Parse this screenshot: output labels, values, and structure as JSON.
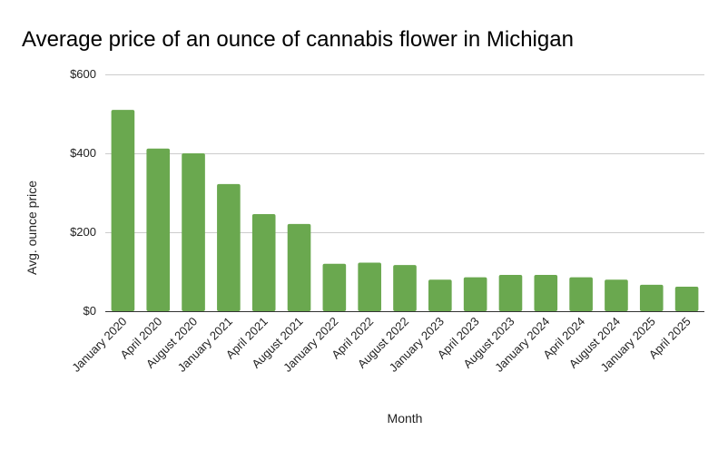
{
  "chart_data": {
    "type": "bar",
    "title": "Average price of an ounce of cannabis flower in Michigan",
    "xlabel": "Month",
    "ylabel": "Avg. ounce price",
    "ylim": [
      0,
      600
    ],
    "yticks": [
      0,
      200,
      400,
      600
    ],
    "ytick_labels": [
      "$0",
      "$200",
      "$400",
      "$600"
    ],
    "grid": true,
    "legend": "none",
    "bar_color": "#6aa84f",
    "categories": [
      "January 2020",
      "April 2020",
      "August 2020",
      "January 2021",
      "April 2021",
      "August 2021",
      "January 2022",
      "April 2022",
      "August 2022",
      "January 2023",
      "April 2023",
      "August 2023",
      "January 2024",
      "April 2024",
      "August 2024",
      "January 2025",
      "April 2025"
    ],
    "values": [
      510,
      412,
      400,
      322,
      246,
      221,
      120,
      123,
      117,
      80,
      86,
      92,
      92,
      86,
      80,
      67,
      62
    ]
  }
}
